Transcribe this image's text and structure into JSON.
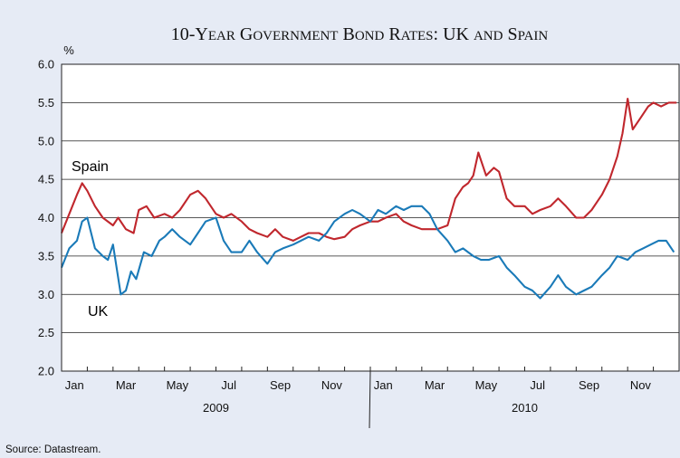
{
  "chart_data": {
    "type": "line",
    "title": "10-Year Government Bond Rates: UK and Spain",
    "ylabel": "%",
    "ylim": [
      2.0,
      6.0
    ],
    "yticks": [
      "2.0",
      "2.5",
      "3.0",
      "3.5",
      "4.0",
      "4.5",
      "5.0",
      "5.5",
      "6.0"
    ],
    "x_month_ticks": [
      "Jan",
      "Mar",
      "May",
      "Jul",
      "Sep",
      "Nov",
      "Jan",
      "Mar",
      "May",
      "Jul",
      "Sep",
      "Nov"
    ],
    "x_year_labels": [
      "2009",
      "2010"
    ],
    "source": "Source: Datastream.",
    "grid": "horizontal",
    "series": [
      {
        "name": "Spain",
        "color": "#c0272d",
        "x": [
          0.0,
          0.3,
          0.6,
          0.8,
          1.0,
          1.3,
          1.6,
          2.0,
          2.2,
          2.5,
          2.8,
          3.0,
          3.3,
          3.6,
          4.0,
          4.3,
          4.6,
          5.0,
          5.3,
          5.6,
          6.0,
          6.3,
          6.6,
          7.0,
          7.3,
          7.6,
          8.0,
          8.3,
          8.6,
          9.0,
          9.3,
          9.6,
          10.0,
          10.3,
          10.6,
          11.0,
          11.3,
          11.6,
          12.0,
          12.3,
          12.6,
          13.0,
          13.3,
          13.6,
          14.0,
          14.3,
          14.6,
          15.0,
          15.3,
          15.6,
          15.8,
          16.0,
          16.2,
          16.5,
          16.8,
          17.0,
          17.3,
          17.6,
          18.0,
          18.3,
          18.6,
          19.0,
          19.3,
          19.6,
          20.0,
          20.3,
          20.6,
          21.0,
          21.3,
          21.6,
          21.8,
          22.0,
          22.2,
          22.5,
          22.8,
          23.0,
          23.3,
          23.6,
          23.9
        ],
        "values": [
          3.8,
          4.05,
          4.3,
          4.45,
          4.35,
          4.15,
          4.0,
          3.9,
          4.0,
          3.85,
          3.8,
          4.1,
          4.15,
          4.0,
          4.05,
          4.0,
          4.1,
          4.3,
          4.35,
          4.25,
          4.05,
          4.0,
          4.05,
          3.95,
          3.85,
          3.8,
          3.75,
          3.85,
          3.75,
          3.7,
          3.75,
          3.8,
          3.8,
          3.75,
          3.72,
          3.75,
          3.85,
          3.9,
          3.95,
          3.95,
          4.0,
          4.05,
          3.95,
          3.9,
          3.85,
          3.85,
          3.85,
          3.9,
          4.25,
          4.4,
          4.45,
          4.55,
          4.85,
          4.55,
          4.65,
          4.6,
          4.25,
          4.15,
          4.15,
          4.05,
          4.1,
          4.15,
          4.25,
          4.15,
          4.0,
          4.0,
          4.1,
          4.3,
          4.5,
          4.8,
          5.1,
          5.55,
          5.15,
          5.3,
          5.45,
          5.5,
          5.45,
          5.5,
          5.5
        ]
      },
      {
        "name": "UK",
        "color": "#1a7ab8",
        "x": [
          0.0,
          0.3,
          0.6,
          0.8,
          1.0,
          1.3,
          1.6,
          1.8,
          2.0,
          2.3,
          2.5,
          2.7,
          2.9,
          3.2,
          3.5,
          3.8,
          4.0,
          4.3,
          4.6,
          5.0,
          5.3,
          5.6,
          6.0,
          6.3,
          6.6,
          7.0,
          7.3,
          7.6,
          8.0,
          8.3,
          8.6,
          9.0,
          9.3,
          9.6,
          10.0,
          10.3,
          10.6,
          11.0,
          11.3,
          11.6,
          12.0,
          12.3,
          12.6,
          13.0,
          13.3,
          13.6,
          14.0,
          14.3,
          14.6,
          15.0,
          15.3,
          15.6,
          16.0,
          16.3,
          16.6,
          17.0,
          17.3,
          17.6,
          18.0,
          18.3,
          18.6,
          19.0,
          19.3,
          19.6,
          20.0,
          20.3,
          20.6,
          21.0,
          21.3,
          21.6,
          22.0,
          22.3,
          22.6,
          22.9,
          23.2,
          23.5,
          23.8
        ],
        "values": [
          3.35,
          3.6,
          3.7,
          3.95,
          4.0,
          3.6,
          3.5,
          3.45,
          3.65,
          3.0,
          3.05,
          3.3,
          3.2,
          3.55,
          3.5,
          3.7,
          3.75,
          3.85,
          3.75,
          3.65,
          3.8,
          3.95,
          4.0,
          3.7,
          3.55,
          3.55,
          3.7,
          3.55,
          3.4,
          3.55,
          3.6,
          3.65,
          3.7,
          3.75,
          3.7,
          3.8,
          3.95,
          4.05,
          4.1,
          4.05,
          3.95,
          4.1,
          4.05,
          4.15,
          4.1,
          4.15,
          4.15,
          4.05,
          3.85,
          3.7,
          3.55,
          3.6,
          3.5,
          3.45,
          3.45,
          3.5,
          3.35,
          3.25,
          3.1,
          3.05,
          2.95,
          3.1,
          3.25,
          3.1,
          3.0,
          3.05,
          3.1,
          3.25,
          3.35,
          3.5,
          3.45,
          3.55,
          3.6,
          3.65,
          3.7,
          3.7,
          3.55
        ]
      }
    ]
  }
}
